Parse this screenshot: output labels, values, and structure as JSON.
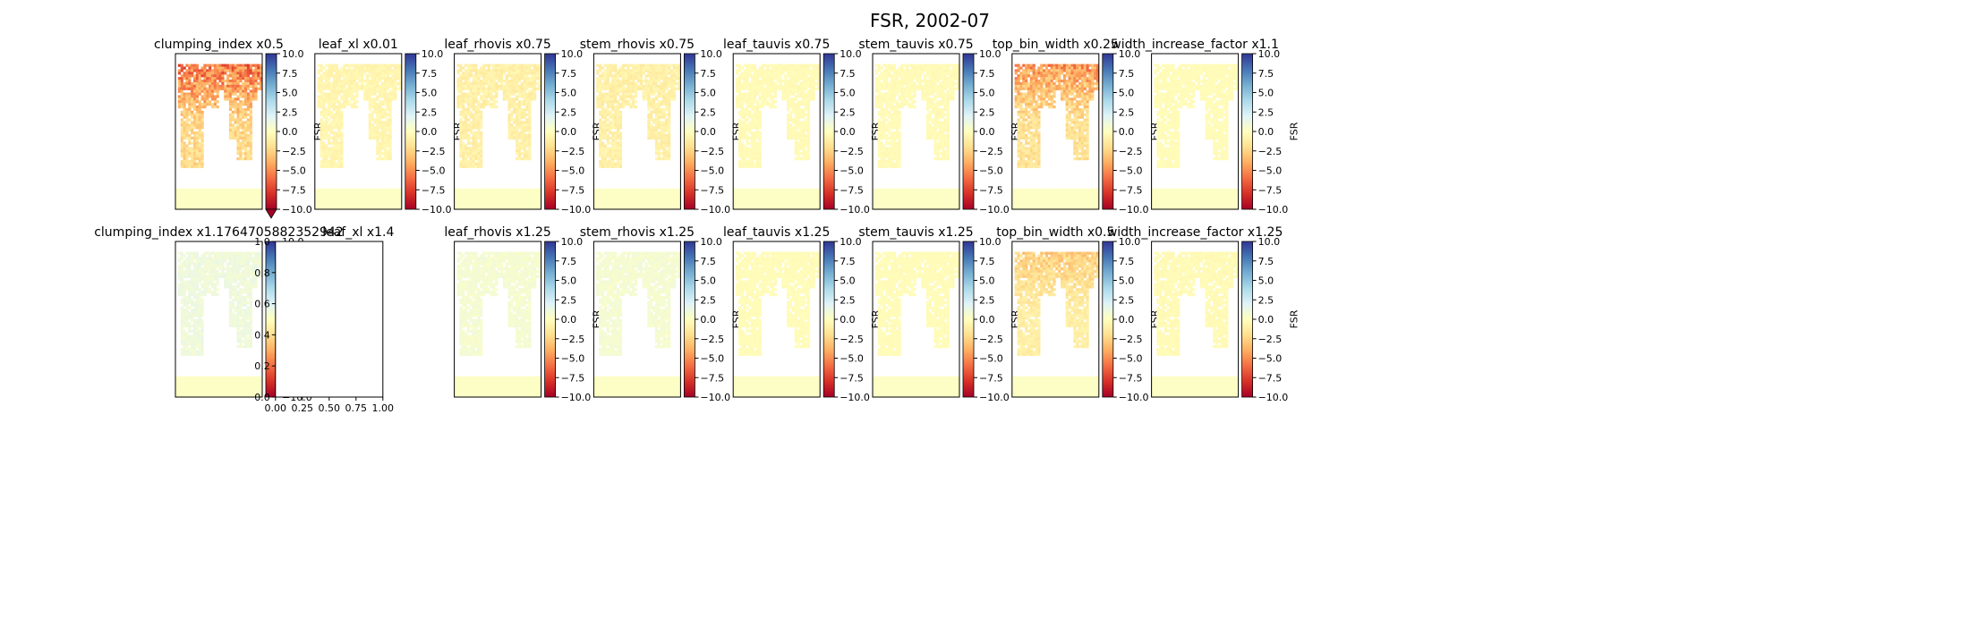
{
  "figure": {
    "title": "FSR, 2002-07"
  },
  "colorbar": {
    "label": "FSR",
    "ticks": [
      "10.0",
      "7.5",
      "5.0",
      "2.5",
      "0.0",
      "−2.5",
      "−5.0",
      "−7.5",
      "−10.0"
    ],
    "range": [
      -10,
      10
    ],
    "colormap": "RdYlBu",
    "colormap_stops": [
      "#a50026",
      "#d73027",
      "#f46d43",
      "#fdae61",
      "#fee090",
      "#ffffbf",
      "#e0f3f8",
      "#abd9e9",
      "#74add1",
      "#4575b4",
      "#313695"
    ]
  },
  "chart_data": [
    {
      "type": "heatmap",
      "title": "clumping_index x0.5",
      "colorbar_extend": "min",
      "intensity": -0.75,
      "pattern": "strong"
    },
    {
      "type": "heatmap",
      "title": "leaf_xl x0.01",
      "intensity": -0.08,
      "pattern": "faint"
    },
    {
      "type": "heatmap",
      "title": "leaf_rhovis x0.75",
      "intensity": -0.12,
      "pattern": "faint"
    },
    {
      "type": "heatmap",
      "title": "stem_rhovis x0.75",
      "intensity": -0.12,
      "pattern": "faint"
    },
    {
      "type": "heatmap",
      "title": "leaf_tauvis x0.75",
      "intensity": -0.04,
      "pattern": "faint"
    },
    {
      "type": "heatmap",
      "title": "stem_tauvis x0.75",
      "intensity": -0.04,
      "pattern": "faint"
    },
    {
      "type": "heatmap",
      "title": "top_bin_width x0.25",
      "intensity": -0.6,
      "pattern": "strong"
    },
    {
      "type": "heatmap",
      "title": "width_increase_factor x1.1",
      "intensity": -0.03,
      "pattern": "faint"
    },
    {
      "type": "heatmap",
      "title": "clumping_index x1.1764705882352942",
      "intensity": 0.12,
      "pattern": "faint"
    },
    {
      "type": "empty",
      "title": "leaf_xl x1.4",
      "xticks": [
        "0.00",
        "0.25",
        "0.50",
        "0.75",
        "1.00"
      ],
      "yticks": [
        "0.0",
        "0.2",
        "0.4",
        "0.6",
        "0.8",
        "1.0"
      ],
      "xlim": [
        0,
        1
      ],
      "ylim": [
        0,
        1
      ]
    },
    {
      "type": "heatmap",
      "title": "leaf_rhovis x1.25",
      "intensity": 0.08,
      "pattern": "faint"
    },
    {
      "type": "heatmap",
      "title": "stem_rhovis x1.25",
      "intensity": 0.08,
      "pattern": "faint"
    },
    {
      "type": "heatmap",
      "title": "leaf_tauvis x1.25",
      "intensity": -0.03,
      "pattern": "faint"
    },
    {
      "type": "heatmap",
      "title": "stem_tauvis x1.25",
      "intensity": -0.03,
      "pattern": "faint"
    },
    {
      "type": "heatmap",
      "title": "top_bin_width x0.5",
      "intensity": -0.35,
      "pattern": "strong"
    },
    {
      "type": "heatmap",
      "title": "width_increase_factor x1.25",
      "intensity": -0.04,
      "pattern": "faint"
    }
  ]
}
